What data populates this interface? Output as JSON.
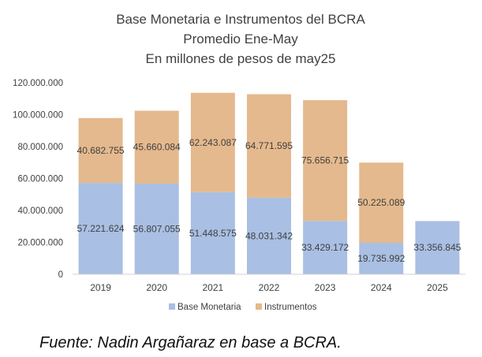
{
  "chart_data": {
    "type": "bar",
    "stacked": true,
    "title_lines": [
      "Base Monetaria e Instrumentos del BCRA",
      "Promedio Ene-May",
      "En millones de pesos de may25"
    ],
    "categories": [
      "2019",
      "2020",
      "2021",
      "2022",
      "2023",
      "2024",
      "2025"
    ],
    "series": [
      {
        "name": "Base Monetaria",
        "color": "#A9BFE3",
        "values": [
          57221624,
          56807055,
          51448575,
          48031342,
          33429172,
          19735992,
          33356845
        ],
        "labels": [
          "57.221.624",
          "56.807.055",
          "51.448.575",
          "48.031.342",
          "33.429.172",
          "19.735.992",
          "33.356.845"
        ]
      },
      {
        "name": "Instrumentos",
        "color": "#E4B98D",
        "values": [
          40682755,
          45660084,
          62243087,
          64771595,
          75656715,
          50225089,
          null
        ],
        "labels": [
          "40.682.755",
          "45.660.084",
          "62.243.087",
          "64.771.595",
          "75.656.715",
          "50.225.089",
          null
        ]
      }
    ],
    "ylim": [
      0,
      120000000
    ],
    "yticks": [
      {
        "value": 0,
        "label": "0"
      },
      {
        "value": 20000000,
        "label": "20.000.000"
      },
      {
        "value": 40000000,
        "label": "40.000.000"
      },
      {
        "value": 60000000,
        "label": "60.000.000"
      },
      {
        "value": 80000000,
        "label": "80.000.000"
      },
      {
        "value": 100000000,
        "label": "100.000.000"
      },
      {
        "value": 120000000,
        "label": "120.000.000"
      }
    ],
    "grid": false,
    "legend_position": "bottom"
  },
  "source_note": "Fuente: Nadin Argañaraz en base a BCRA."
}
